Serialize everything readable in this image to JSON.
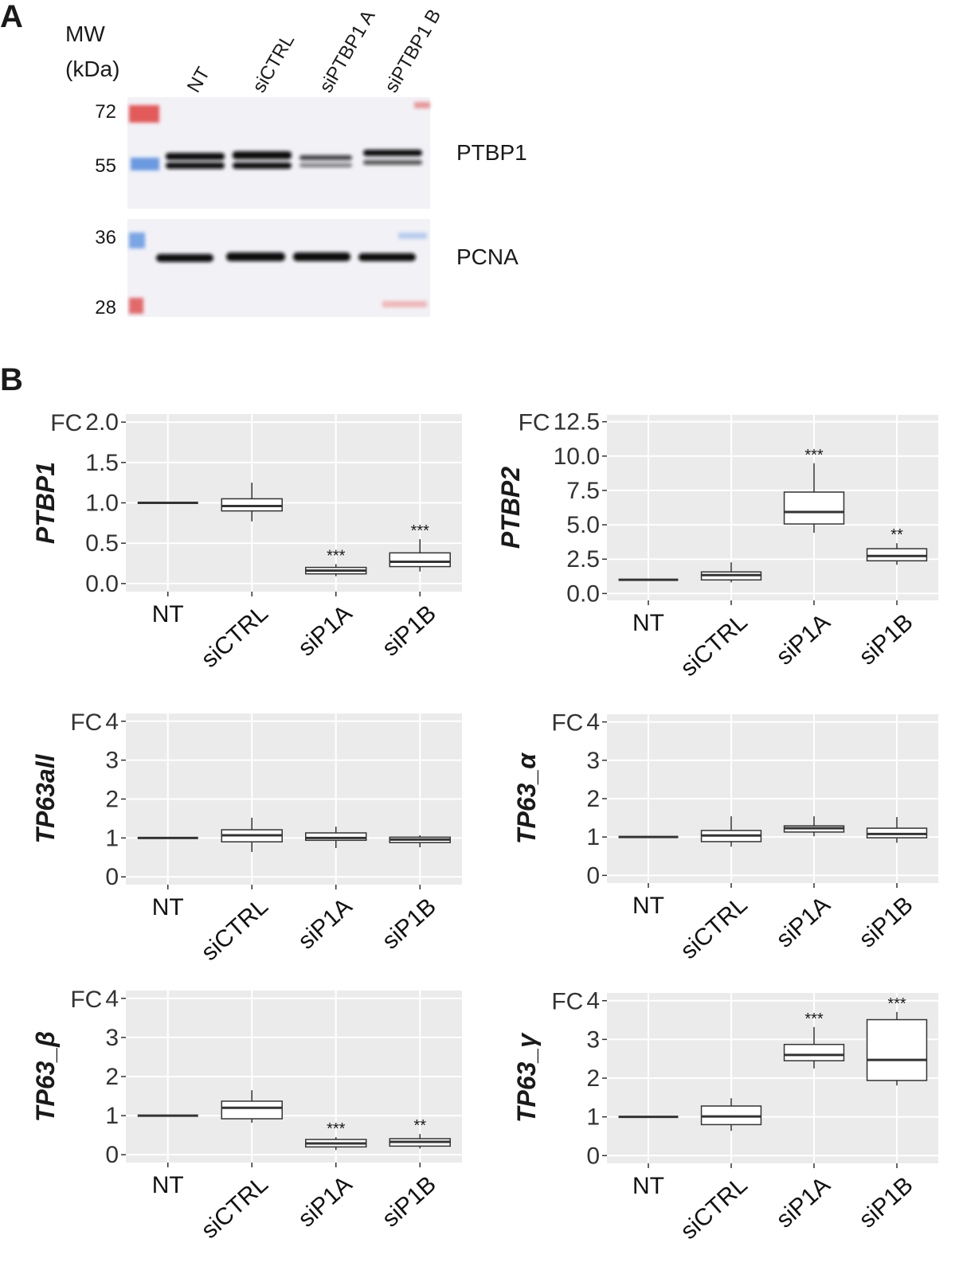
{
  "panel_a": {
    "label": "A",
    "mw_title": "MW",
    "mw_unit": "(kDa)",
    "lanes": [
      "NT",
      "siCTRL",
      "siPTBP1 A",
      "siPTBP1 B"
    ],
    "markers": [
      "72",
      "55",
      "36",
      "28"
    ],
    "proteins": [
      "PTBP1",
      "PCNA"
    ]
  },
  "panel_b_label": "B",
  "chart_data": [
    {
      "type": "box",
      "ylabel": "PTBP1",
      "y_unit": "FC",
      "categories": [
        "NT",
        "siCTRL",
        "siP1A",
        "siP1B"
      ],
      "boxes": [
        {
          "min": 1,
          "q1": 1,
          "median": 1,
          "q3": 1,
          "max": 1
        },
        {
          "min": 0.77,
          "q1": 0.9,
          "median": 0.96,
          "q3": 1.05,
          "max": 1.25
        },
        {
          "min": 0.09,
          "q1": 0.12,
          "median": 0.16,
          "q3": 0.2,
          "max": 0.24
        },
        {
          "min": 0.15,
          "q1": 0.21,
          "median": 0.27,
          "q3": 0.38,
          "max": 0.55
        }
      ],
      "annotations": [
        null,
        null,
        "***",
        "***"
      ],
      "ylim": [
        -0.1,
        2.1
      ],
      "yticks": [
        {
          "value": 0,
          "label": "0.0"
        },
        0.5,
        {
          "value": 1,
          "label": "1.0"
        },
        1.5,
        {
          "value": 2,
          "label": "2.0"
        }
      ],
      "grid": true,
      "color": "#ffffff"
    },
    {
      "type": "box",
      "ylabel": "PTBP2",
      "y_unit": "FC",
      "categories": [
        "NT",
        "siCTRL",
        "siP1A",
        "siP1B"
      ],
      "boxes": [
        {
          "min": 1,
          "q1": 1,
          "median": 1,
          "q3": 1,
          "max": 1
        },
        {
          "min": 0.81,
          "q1": 0.99,
          "median": 1.34,
          "q3": 1.57,
          "max": 2.27
        },
        {
          "min": 4.42,
          "q1": 5.06,
          "median": 5.93,
          "q3": 7.38,
          "max": 9.48
        },
        {
          "min": 2.09,
          "q1": 2.38,
          "median": 2.73,
          "q3": 3.26,
          "max": 3.66
        }
      ],
      "annotations": [
        null,
        null,
        "***",
        "**"
      ],
      "ylim": [
        -0.5,
        13
      ],
      "yticks": [
        {
          "value": 0,
          "label": "0.0"
        },
        2.5,
        {
          "value": 5,
          "label": "5.0"
        },
        7.5,
        {
          "value": 10,
          "label": "10.0"
        },
        12.5
      ],
      "grid": true,
      "color": "#ffffff"
    },
    {
      "type": "box",
      "ylabel": "TP63all",
      "y_unit": "FC",
      "categories": [
        "NT",
        "siCTRL",
        "siP1A",
        "siP1B"
      ],
      "boxes": [
        {
          "min": 1,
          "q1": 1,
          "median": 1,
          "q3": 1,
          "max": 1
        },
        {
          "min": 0.64,
          "q1": 0.9,
          "median": 1.07,
          "q3": 1.21,
          "max": 1.52
        },
        {
          "min": 0.74,
          "q1": 0.94,
          "median": 1.0,
          "q3": 1.13,
          "max": 1.29
        },
        {
          "min": 0.76,
          "q1": 0.88,
          "median": 0.96,
          "q3": 1.02,
          "max": 1.07
        }
      ],
      "annotations": [
        null,
        null,
        null,
        null
      ],
      "ylim": [
        -0.2,
        4.2
      ],
      "yticks": [
        0,
        1,
        2,
        3,
        4
      ],
      "grid": true,
      "color": "#ffffff"
    },
    {
      "type": "box",
      "ylabel": "TP63_α",
      "y_unit": "FC",
      "categories": [
        "NT",
        "siCTRL",
        "siP1A",
        "siP1B"
      ],
      "boxes": [
        {
          "min": 1,
          "q1": 1,
          "median": 1,
          "q3": 1,
          "max": 1
        },
        {
          "min": 0.75,
          "q1": 0.88,
          "median": 1.04,
          "q3": 1.17,
          "max": 1.54
        },
        {
          "min": 1.02,
          "q1": 1.13,
          "median": 1.23,
          "q3": 1.29,
          "max": 1.54
        },
        {
          "min": 0.85,
          "q1": 0.98,
          "median": 1.08,
          "q3": 1.23,
          "max": 1.52
        }
      ],
      "annotations": [
        null,
        null,
        null,
        null
      ],
      "ylim": [
        -0.2,
        4.2
      ],
      "yticks": [
        0,
        1,
        2,
        3,
        4
      ],
      "grid": true,
      "color": "#ffffff"
    },
    {
      "type": "box",
      "ylabel": "TP63_β",
      "y_unit": "FC",
      "categories": [
        "NT",
        "siCTRL",
        "siP1A",
        "siP1B"
      ],
      "boxes": [
        {
          "min": 1,
          "q1": 1,
          "median": 1,
          "q3": 1,
          "max": 1
        },
        {
          "min": 0.82,
          "q1": 0.92,
          "median": 1.2,
          "q3": 1.37,
          "max": 1.65
        },
        {
          "min": 0.12,
          "q1": 0.2,
          "median": 0.29,
          "q3": 0.39,
          "max": 0.45
        },
        {
          "min": 0.16,
          "q1": 0.22,
          "median": 0.33,
          "q3": 0.41,
          "max": 0.53
        }
      ],
      "annotations": [
        null,
        null,
        "***",
        "**"
      ],
      "ylim": [
        -0.2,
        4.2
      ],
      "yticks": [
        0,
        1,
        2,
        3,
        4
      ],
      "grid": true,
      "color": "#ffffff"
    },
    {
      "type": "box",
      "ylabel": "TP63_γ",
      "y_unit": "FC",
      "categories": [
        "NT",
        "siCTRL",
        "siP1A",
        "siP1B"
      ],
      "boxes": [
        {
          "min": 1,
          "q1": 1,
          "median": 1,
          "q3": 1,
          "max": 1
        },
        {
          "min": 0.64,
          "q1": 0.8,
          "median": 1.01,
          "q3": 1.28,
          "max": 1.48
        },
        {
          "min": 2.25,
          "q1": 2.45,
          "median": 2.6,
          "q3": 2.87,
          "max": 3.32
        },
        {
          "min": 1.81,
          "q1": 1.94,
          "median": 2.47,
          "q3": 3.51,
          "max": 3.71
        }
      ],
      "annotations": [
        null,
        null,
        "***",
        "***"
      ],
      "ylim": [
        -0.2,
        4.2
      ],
      "yticks": [
        0,
        1,
        2,
        3,
        4
      ],
      "grid": true,
      "color": "#ffffff"
    }
  ]
}
